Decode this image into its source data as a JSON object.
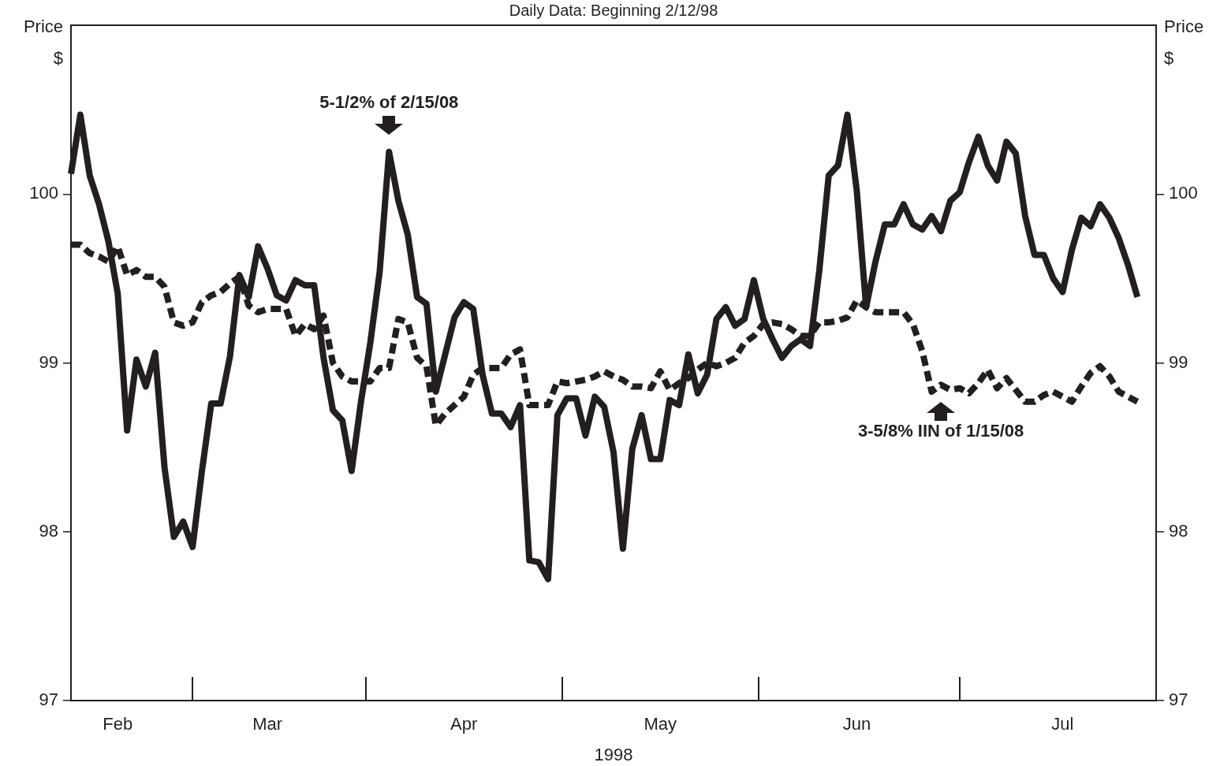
{
  "chart_data": {
    "type": "line",
    "title": "Daily Data: Beginning 2/12/98",
    "xlabel": "1998",
    "ylabel": "Price\n$",
    "y2label": "Price\n$",
    "categories": [
      null,
      null,
      null,
      null,
      null,
      "Feb",
      null,
      null,
      null,
      null,
      null,
      null,
      null,
      null,
      null,
      null,
      null,
      null,
      null,
      null,
      null,
      "Mar",
      null,
      null,
      null,
      null,
      null,
      null,
      null,
      null,
      null,
      null,
      null,
      null,
      null,
      null,
      null,
      null,
      null,
      null,
      null,
      null,
      "Apr",
      null,
      null,
      null,
      null,
      null,
      null,
      null,
      null,
      null,
      null,
      null,
      null,
      null,
      null,
      null,
      null,
      null,
      null,
      null,
      null,
      "May",
      null,
      null,
      null,
      null,
      null,
      null,
      null,
      null,
      null,
      null,
      null,
      null,
      null,
      null,
      null,
      null,
      null,
      null,
      null,
      null,
      "Jun",
      null,
      null,
      null,
      null,
      null,
      null,
      null,
      null,
      null,
      null,
      null,
      null,
      null,
      null,
      null,
      null,
      null,
      null,
      null,
      null,
      null,
      "Jul",
      null,
      null,
      null,
      null,
      null,
      null,
      null,
      null,
      null,
      null
    ],
    "ylim": [
      97,
      101
    ],
    "yticks": [
      97,
      98,
      99,
      100
    ],
    "y2lim": [
      97,
      101
    ],
    "y2ticks": [
      97,
      98,
      99,
      100
    ],
    "marker": "none",
    "annotations": [
      {
        "text": "5-1/2% of 2/15/08",
        "y": 100.25
      },
      {
        "text": "3-5/8% IIN of 1/15/08",
        "y": 98.87
      }
    ],
    "series": [
      {
        "color": "#231f20",
        "line_style": "solid",
        "values": [
          100.12,
          100.47,
          100.11,
          99.94,
          99.72,
          99.41,
          98.6,
          99.02,
          98.86,
          99.06,
          98.38,
          97.97,
          98.06,
          97.91,
          98.36,
          98.76,
          98.76,
          99.04,
          99.52,
          99.39,
          99.69,
          99.56,
          99.4,
          99.37,
          99.49,
          99.46,
          99.46,
          99.03,
          98.72,
          98.66,
          98.36,
          98.77,
          99.12,
          99.54,
          100.25,
          99.96,
          99.76,
          99.39,
          99.35,
          98.83,
          99.05,
          99.27,
          99.36,
          99.32,
          98.93,
          98.7,
          98.7,
          98.62,
          98.75,
          97.83,
          97.82,
          97.72,
          98.69,
          98.79,
          98.79,
          98.57,
          98.8,
          98.74,
          98.47,
          97.9,
          98.49,
          98.69,
          98.43,
          98.43,
          98.78,
          98.75,
          99.05,
          98.82,
          98.93,
          99.26,
          99.33,
          99.22,
          99.26,
          99.49,
          99.26,
          99.14,
          99.03,
          99.1,
          99.14,
          99.1,
          99.55,
          100.11,
          100.17,
          100.47,
          100.02,
          99.33,
          99.6,
          99.82,
          99.82,
          99.94,
          99.82,
          99.79,
          99.87,
          99.78,
          99.96,
          100.01,
          100.19,
          100.34,
          100.17,
          100.08,
          100.31,
          100.24,
          99.87,
          99.64,
          99.64,
          99.5,
          99.42,
          99.67,
          99.86,
          99.81,
          99.94,
          99.86,
          99.74,
          99.58,
          99.39,
          null,
          null
        ]
      },
      {
        "color": "#231f20",
        "line_style": "dashed",
        "values": [
          99.7,
          99.7,
          99.65,
          99.63,
          99.6,
          99.69,
          99.52,
          99.55,
          99.51,
          99.51,
          99.45,
          99.24,
          99.22,
          99.24,
          99.36,
          99.4,
          99.42,
          99.47,
          99.51,
          99.34,
          99.3,
          99.32,
          99.32,
          99.32,
          99.16,
          99.23,
          99.2,
          99.28,
          99.0,
          98.92,
          98.89,
          98.89,
          98.89,
          98.97,
          98.97,
          99.26,
          99.24,
          99.03,
          98.98,
          98.63,
          98.7,
          98.75,
          98.8,
          98.93,
          98.97,
          98.97,
          98.97,
          99.05,
          99.08,
          98.75,
          98.75,
          98.75,
          98.89,
          98.88,
          98.89,
          98.9,
          98.92,
          98.95,
          98.92,
          98.9,
          98.86,
          98.86,
          98.85,
          98.95,
          98.84,
          98.88,
          98.91,
          98.96,
          99.0,
          98.98,
          99.0,
          99.03,
          99.12,
          99.16,
          99.23,
          99.24,
          99.23,
          99.2,
          99.16,
          99.16,
          99.24,
          99.24,
          99.25,
          99.27,
          99.37,
          99.33,
          99.3,
          99.3,
          99.3,
          99.3,
          99.23,
          99.07,
          98.83,
          98.87,
          98.84,
          98.85,
          98.82,
          98.88,
          98.96,
          98.85,
          98.91,
          98.84,
          98.77,
          98.77,
          98.81,
          98.83,
          98.8,
          98.77,
          98.86,
          98.94,
          98.98,
          98.92,
          98.83,
          98.8,
          98.77,
          null,
          null
        ]
      }
    ]
  }
}
